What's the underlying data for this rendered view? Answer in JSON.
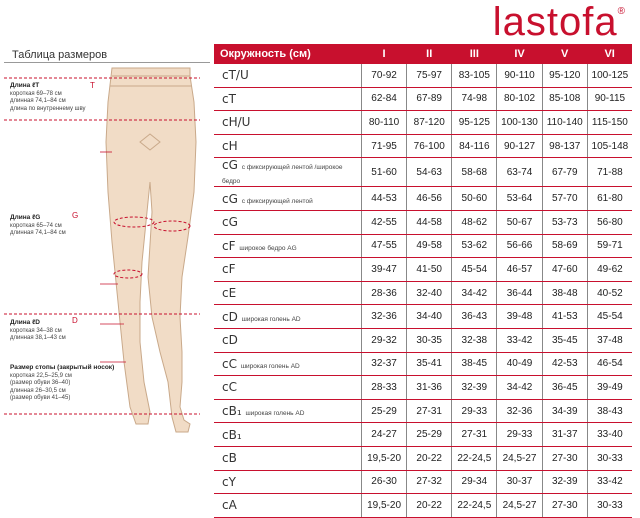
{
  "brand": {
    "logo": "lastofa",
    "trademark": "®"
  },
  "left_panel": {
    "title": "Таблица размеров",
    "notes": [
      {
        "lines": [
          "Длина ℓT",
          "короткая 69–78 см",
          "длинная 74,1–84 см",
          "длина по внутреннему шву"
        ],
        "marker": "T"
      },
      {
        "lines": [
          "Длина ℓG",
          "короткая 65–74 см",
          "длинная 74,1–84 см"
        ],
        "marker": "G"
      },
      {
        "lines": [
          "Длина ℓD",
          "короткая 34–38 см",
          "длинная 38,1–43 см"
        ],
        "marker": "D"
      },
      {
        "lines": [
          "Размер стопы (закрытый носок)",
          "короткая 22,5–25,9 см",
          "(размер обуви 36–40)",
          "длинная 26–30,5 см",
          "(размер обуви 41–45)"
        ],
        "marker": ""
      }
    ]
  },
  "table": {
    "header": "Окружность (см)",
    "size_columns": [
      "I",
      "II",
      "III",
      "IV",
      "V",
      "VI"
    ],
    "rows": [
      {
        "code": "cT/U",
        "note": "",
        "values": [
          "70-92",
          "75-97",
          "83-105",
          "90-110",
          "95-120",
          "100-125"
        ]
      },
      {
        "code": "cT",
        "note": "",
        "values": [
          "62-84",
          "67-89",
          "74-98",
          "80-102",
          "85-108",
          "90-115"
        ]
      },
      {
        "code": "cH/U",
        "note": "",
        "values": [
          "80-110",
          "87-120",
          "95-125",
          "100-130",
          "110-140",
          "115-150"
        ]
      },
      {
        "code": "cH",
        "note": "",
        "values": [
          "71-95",
          "76-100",
          "84-116",
          "90-127",
          "98-137",
          "105-148"
        ]
      },
      {
        "code": "cG",
        "note": "с фиксирующей лентой /широкое бедро",
        "values": [
          "51-60",
          "54-63",
          "58-68",
          "63-74",
          "67-79",
          "71-88"
        ]
      },
      {
        "code": "cG",
        "note": "с фиксирующей лентой",
        "values": [
          "44-53",
          "46-56",
          "50-60",
          "53-64",
          "57-70",
          "61-80"
        ]
      },
      {
        "code": "cG",
        "note": "",
        "values": [
          "42-55",
          "44-58",
          "48-62",
          "50-67",
          "53-73",
          "56-80"
        ]
      },
      {
        "code": "cF",
        "note": "широкое бедро AG",
        "values": [
          "47-55",
          "49-58",
          "53-62",
          "56-66",
          "58-69",
          "59-71"
        ]
      },
      {
        "code": "cF",
        "note": "",
        "values": [
          "39-47",
          "41-50",
          "45-54",
          "46-57",
          "47-60",
          "49-62"
        ]
      },
      {
        "code": "cE",
        "note": "",
        "values": [
          "28-36",
          "32-40",
          "34-42",
          "36-44",
          "38-48",
          "40-52"
        ]
      },
      {
        "code": "cD",
        "note": "широкая голень AD",
        "values": [
          "32-36",
          "34-40",
          "36-43",
          "39-48",
          "41-53",
          "45-54"
        ]
      },
      {
        "code": "cD",
        "note": "",
        "values": [
          "29-32",
          "30-35",
          "32-38",
          "33-42",
          "35-45",
          "37-48"
        ]
      },
      {
        "code": "cC",
        "note": "широкая голень AD",
        "values": [
          "32-37",
          "35-41",
          "38-45",
          "40-49",
          "42-53",
          "46-54"
        ]
      },
      {
        "code": "cC",
        "note": "",
        "values": [
          "28-33",
          "31-36",
          "32-39",
          "34-42",
          "36-45",
          "39-49"
        ]
      },
      {
        "code": "cB₁",
        "note": "широкая голень AD",
        "values": [
          "25-29",
          "27-31",
          "29-33",
          "32-36",
          "34-39",
          "38-43"
        ]
      },
      {
        "code": "cB₁",
        "note": "",
        "values": [
          "24-27",
          "25-29",
          "27-31",
          "29-33",
          "31-37",
          "33-40"
        ]
      },
      {
        "code": "cB",
        "note": "",
        "values": [
          "19,5-20",
          "20-22",
          "22-24,5",
          "24,5-27",
          "27-30",
          "30-33"
        ]
      },
      {
        "code": "cY",
        "note": "",
        "values": [
          "26-30",
          "27-32",
          "29-34",
          "30-37",
          "32-39",
          "33-42"
        ]
      },
      {
        "code": "cA",
        "note": "",
        "values": [
          "19,5-20",
          "20-22",
          "22-24,5",
          "24,5-27",
          "27-30",
          "30-33"
        ]
      }
    ]
  },
  "colors": {
    "accent": "#c8102e",
    "leg_fill": "#f1dcc6",
    "leg_stroke": "#c9a98a"
  }
}
